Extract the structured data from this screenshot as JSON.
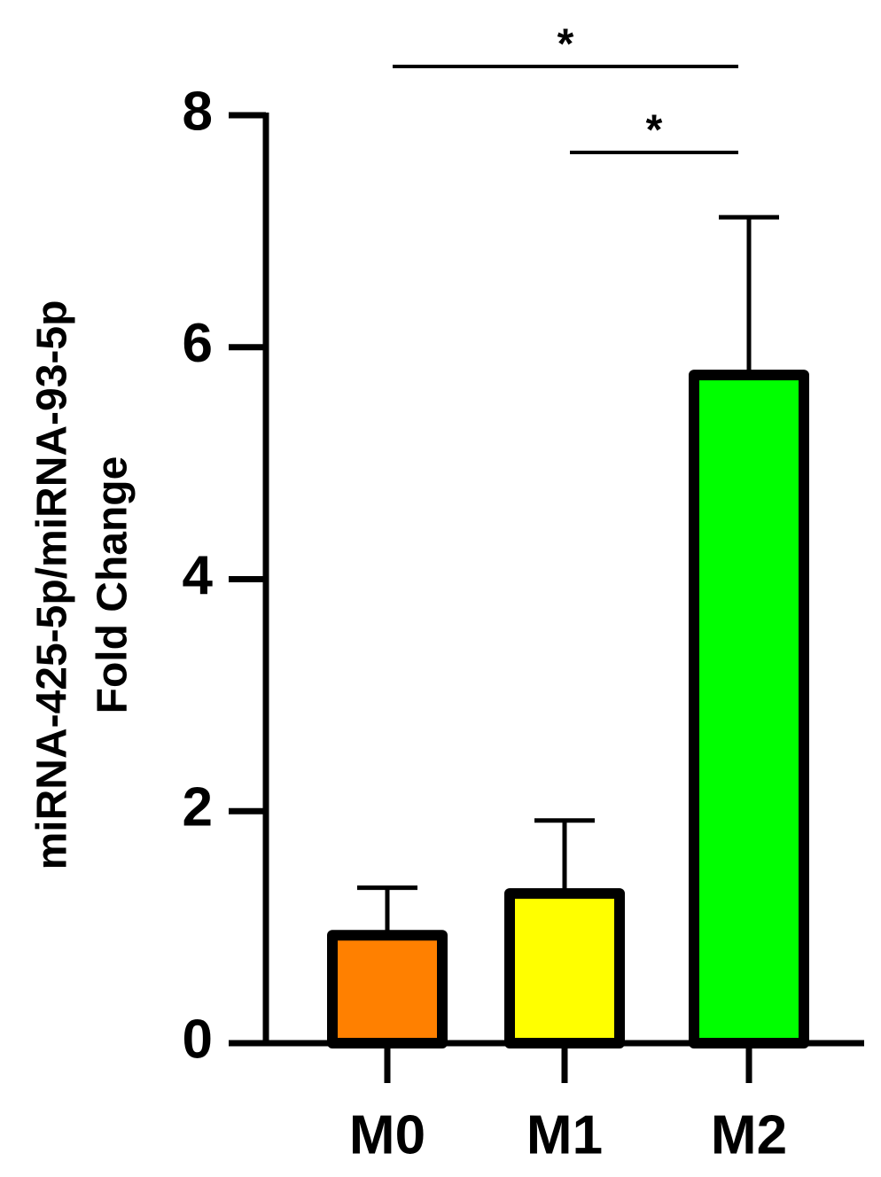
{
  "chart_data": {
    "type": "bar",
    "ylabel": [
      "miRNA-425-5p/miRNA-93-5p",
      "Fold Change"
    ],
    "categories": [
      "M0",
      "M1",
      "M2"
    ],
    "values": [
      0.93,
      1.29,
      5.76
    ],
    "errors": [
      0.41,
      0.63,
      1.36
    ],
    "colors": [
      "#ff8000",
      "#ffff00",
      "#00ff00"
    ],
    "ylim": [
      0,
      8
    ],
    "yticks": [
      0,
      2,
      4,
      6,
      8
    ],
    "annotations": [
      {
        "text": "*",
        "from": "M0",
        "to": "M2"
      },
      {
        "text": "*",
        "from": "M1",
        "to": "M2"
      }
    ]
  }
}
